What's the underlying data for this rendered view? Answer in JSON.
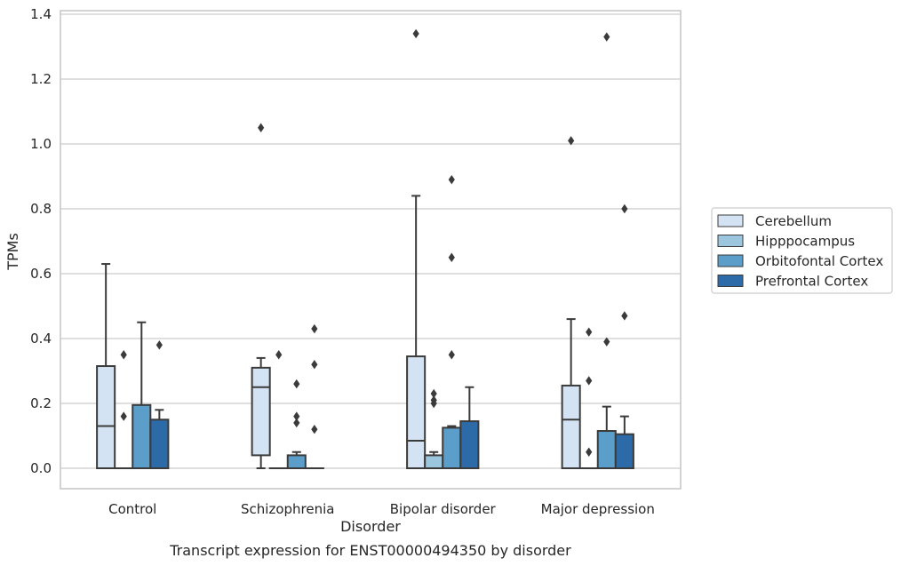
{
  "chart_data": {
    "type": "box",
    "xlabel": "Disorder",
    "ylabel": "TPMs",
    "caption": "Transcript expression for ENST00000494350 by disorder",
    "ylim": [
      -0.065,
      1.41
    ],
    "yticks": [
      "0.0",
      "0.2",
      "0.4",
      "0.6",
      "0.8",
      "1.0",
      "1.2",
      "1.4"
    ],
    "grid": "horizontal",
    "legend_position": "right",
    "categories": [
      "Control",
      "Schizophrenia",
      "Bipolar disorder",
      "Major depression"
    ],
    "series": [
      {
        "name": "Cerebellum",
        "color": "#d4e3f3",
        "boxes": [
          {
            "min": 0.0,
            "q1": 0.0,
            "median": 0.13,
            "q3": 0.315,
            "max": 0.63,
            "outliers": []
          },
          {
            "min": 0.0,
            "q1": 0.04,
            "median": 0.25,
            "q3": 0.31,
            "max": 0.34,
            "outliers": [
              1.05
            ]
          },
          {
            "min": 0.0,
            "q1": 0.0,
            "median": 0.085,
            "q3": 0.345,
            "max": 0.84,
            "outliers": [
              1.34
            ]
          },
          {
            "min": 0.0,
            "q1": 0.0,
            "median": 0.15,
            "q3": 0.255,
            "max": 0.46,
            "outliers": [
              1.01
            ]
          }
        ]
      },
      {
        "name": "Hipppocampus",
        "color": "#9cc6de",
        "boxes": [
          {
            "min": 0.0,
            "q1": 0.0,
            "median": 0.0,
            "q3": 0.0,
            "max": 0.0,
            "outliers": [
              0.35,
              0.16
            ]
          },
          {
            "min": 0.0,
            "q1": 0.0,
            "median": 0.0,
            "q3": 0.0,
            "max": 0.0,
            "outliers": [
              0.35
            ]
          },
          {
            "min": 0.0,
            "q1": 0.0,
            "median": 0.0,
            "q3": 0.04,
            "max": 0.05,
            "outliers": [
              0.23,
              0.21,
              0.2
            ]
          },
          {
            "min": 0.0,
            "q1": 0.0,
            "median": 0.0,
            "q3": 0.0,
            "max": 0.0,
            "outliers": [
              0.42,
              0.27,
              0.05
            ]
          }
        ]
      },
      {
        "name": "Orbitofontal Cortex",
        "color": "#5a9ec9",
        "boxes": [
          {
            "min": 0.0,
            "q1": 0.0,
            "median": 0.0,
            "q3": 0.195,
            "max": 0.45,
            "outliers": []
          },
          {
            "min": 0.0,
            "q1": 0.0,
            "median": 0.0,
            "q3": 0.04,
            "max": 0.05,
            "outliers": [
              0.26,
              0.16,
              0.14
            ]
          },
          {
            "min": 0.0,
            "q1": 0.0,
            "median": 0.0,
            "q3": 0.125,
            "max": 0.13,
            "outliers": [
              0.89,
              0.65,
              0.35
            ]
          },
          {
            "min": 0.0,
            "q1": 0.0,
            "median": 0.0,
            "q3": 0.115,
            "max": 0.19,
            "outliers": [
              1.33,
              0.39
            ]
          }
        ]
      },
      {
        "name": "Prefrontal Cortex",
        "color": "#2c6aa8",
        "boxes": [
          {
            "min": 0.0,
            "q1": 0.0,
            "median": 0.0,
            "q3": 0.15,
            "max": 0.18,
            "outliers": [
              0.38
            ]
          },
          {
            "min": 0.0,
            "q1": 0.0,
            "median": 0.0,
            "q3": 0.0,
            "max": 0.0,
            "outliers": [
              0.43,
              0.32,
              0.12
            ]
          },
          {
            "min": 0.0,
            "q1": 0.0,
            "median": 0.0,
            "q3": 0.145,
            "max": 0.25,
            "outliers": []
          },
          {
            "min": 0.0,
            "q1": 0.0,
            "median": 0.0,
            "q3": 0.105,
            "max": 0.16,
            "outliers": [
              0.8,
              0.47
            ]
          }
        ]
      }
    ],
    "colors": {
      "edge": "#3b3b3b",
      "grid": "#cccccc",
      "spine": "#c8c8c8"
    }
  }
}
